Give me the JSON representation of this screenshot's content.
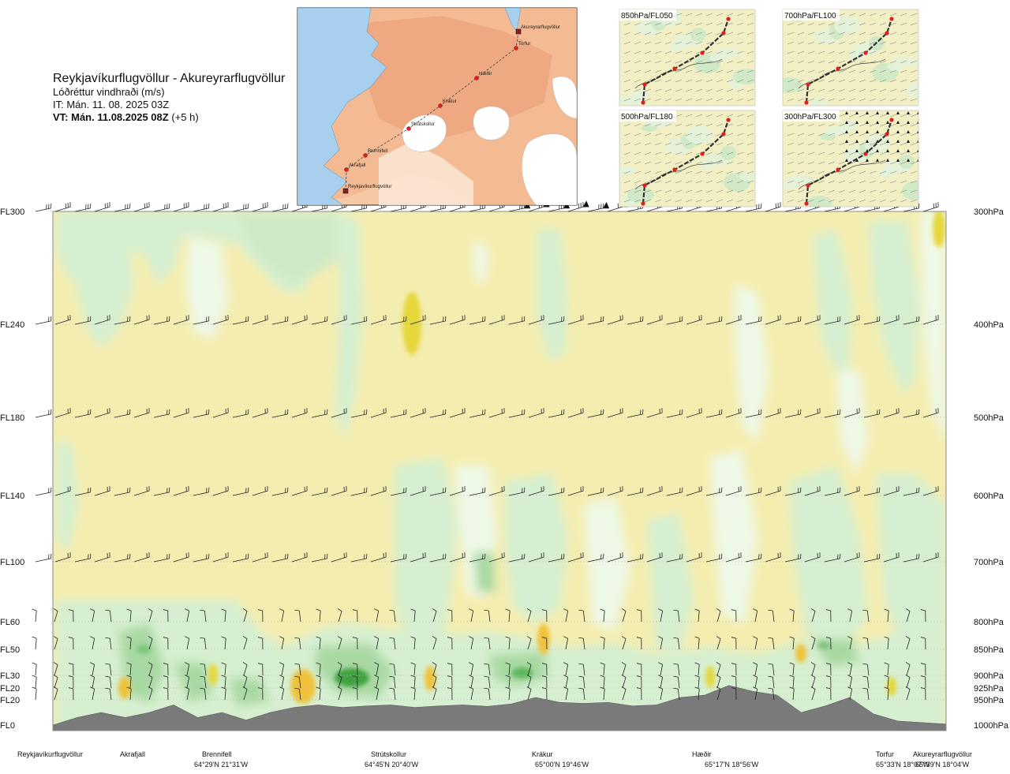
{
  "header": {
    "route": "Reykjavíkurflugvöllur - Akureyrarflugvöllur",
    "parameter": "Lóðréttur vindhraði (m/s)",
    "issue_time": "IT: Mán. 11. 08. 2025 03Z",
    "valid_time_bold": "VT: Mán. 11.08.2025 08Z",
    "valid_time_offset": "(+5 h)"
  },
  "map": {
    "places": [
      "Akureyrarflugvöllur",
      "Torfur",
      "Hæðir",
      "Krákur",
      "Strútskollur",
      "Brennifell",
      "Akrafjall",
      "Reykjavíkurflugvöllur"
    ]
  },
  "mini_maps": [
    {
      "title": "850hPa/FL050"
    },
    {
      "title": "700hPa/FL100"
    },
    {
      "title": "500hPa/FL180"
    },
    {
      "title": "300hPa/FL300"
    }
  ],
  "colors": {
    "yellow": "#f4edb0",
    "light_yellow": "#fbf8d8",
    "pale_green": "#eef8e6",
    "light_green": "#d6efd0",
    "mid_green": "#a9d9a2",
    "dark_green": "#3fa23f",
    "orange": "#f0c23a",
    "dark_yellow": "#e6d73a",
    "terrain": "#7a7a7a"
  },
  "chart_data": {
    "type": "heatmap",
    "title": "Lóðréttur vindhraði (m/s)",
    "left_axis_levels": [
      "FL300",
      "FL240",
      "FL180",
      "FL140",
      "FL100",
      "FL60",
      "FL50",
      "FL30",
      "FL20",
      "FL20",
      "FL0"
    ],
    "right_axis_levels": [
      "300hPa",
      "400hPa",
      "500hPa",
      "600hPa",
      "700hPa",
      "800hPa",
      "850hPa",
      "900hPa",
      "925hPa",
      "950hPa",
      "1000hPa"
    ],
    "pressure_hpa": [
      300,
      400,
      500,
      600,
      700,
      800,
      850,
      900,
      925,
      950,
      1000
    ],
    "ylim_hpa": [
      1000,
      300
    ],
    "x_locations": [
      {
        "name": "Reykjavíkurflugvöllur",
        "coord": ""
      },
      {
        "name": "Akrafjall",
        "coord": ""
      },
      {
        "name": "Brennifell",
        "coord": "64°29'N 21°31'W"
      },
      {
        "name": "Strútskollur",
        "coord": "64°45'N 20°40'W"
      },
      {
        "name": "Krákur",
        "coord": "65°00'N 19°46'W"
      },
      {
        "name": "Hæðir",
        "coord": "65°17'N 18°56'W"
      },
      {
        "name": "Torfur",
        "coord": "65°33'N 18°07'W"
      },
      {
        "name": "Akureyrarflugvöllur",
        "coord": "65°39'N 18°04'W"
      }
    ],
    "x_fraction": [
      0.0,
      0.085,
      0.19,
      0.39,
      0.57,
      0.76,
      0.935,
      1.0
    ],
    "terrain_elevation_hpa": [
      1000,
      985,
      975,
      985,
      975,
      960,
      985,
      975,
      990,
      975,
      965,
      960,
      965,
      962,
      960,
      965,
      962,
      960,
      963,
      958,
      945,
      955,
      957,
      955,
      962,
      960,
      945,
      940,
      920,
      932,
      940,
      975,
      962,
      945,
      978,
      992,
      995,
      998
    ]
  }
}
